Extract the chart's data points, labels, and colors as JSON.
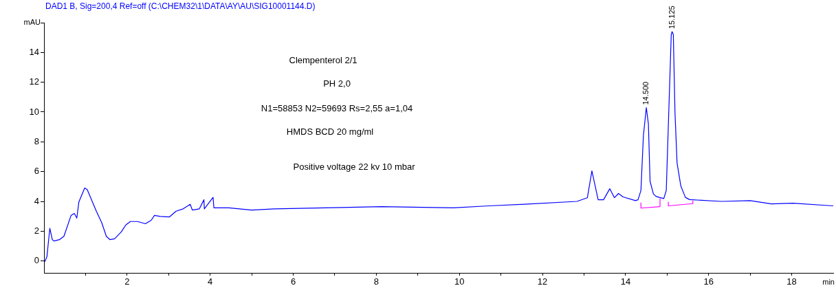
{
  "chart_data": {
    "type": "line",
    "title": "DAD1 B, Sig=200,4 Ref=off (C:\\CHEM32\\1\\DATA\\AY\\AU\\SIG10001144.D)",
    "xlabel": "min",
    "ylabel": "mAU",
    "annotations": [
      "Clempenterol 2/1",
      "PH 2,0",
      "N1=58853 N2=59693 Rs=2,55 a=1,04",
      "HMDS BCD 20 mg/ml",
      "Positive voltage 22 kv 10 mbar",
      {
        "text": "14.500",
        "x": 14.5,
        "y": 10.3
      },
      {
        "text": "15.125",
        "x": 15.12,
        "y": 15.4
      }
    ],
    "series": [
      {
        "color": "#0000ff",
        "x": [
          0.02,
          0.07,
          0.14,
          0.2,
          0.24,
          0.37,
          0.48,
          0.65,
          0.73,
          0.79,
          0.84,
          0.98,
          1.04,
          1.12,
          1.26,
          1.39,
          1.5,
          1.59,
          1.7,
          1.86,
          1.97,
          2.08,
          2.25,
          2.44,
          2.58,
          2.66,
          2.8,
          3.02,
          3.18,
          3.35,
          3.52,
          3.57,
          3.74,
          3.85,
          3.86,
          4.07,
          4.09,
          4.45,
          5.0,
          5.55,
          8.13,
          9.85,
          10.71,
          11.57,
          12.83,
          13.08,
          13.19,
          13.34,
          13.47,
          13.62,
          13.73,
          13.83,
          13.94,
          14.24,
          14.3,
          14.37,
          14.43,
          14.5,
          14.55,
          14.59,
          14.67,
          14.73,
          14.81,
          14.92,
          14.98,
          15.04,
          15.1,
          15.12,
          15.15,
          15.19,
          15.24,
          15.33,
          15.44,
          15.54,
          16.31,
          17.0,
          17.51,
          18.03,
          19.0
        ],
        "values": [
          -0.05,
          0.28,
          2.19,
          1.43,
          1.34,
          1.43,
          1.66,
          3.05,
          3.19,
          2.88,
          3.97,
          4.9,
          4.8,
          4.27,
          3.34,
          2.57,
          1.66,
          1.43,
          1.49,
          1.95,
          2.42,
          2.65,
          2.65,
          2.5,
          2.73,
          3.06,
          2.99,
          2.96,
          3.34,
          3.5,
          3.8,
          3.42,
          3.5,
          4.11,
          3.5,
          4.27,
          3.57,
          3.57,
          3.42,
          3.5,
          3.65,
          3.57,
          3.7,
          3.81,
          4.0,
          4.24,
          6.05,
          4.11,
          4.11,
          4.85,
          4.25,
          4.53,
          4.3,
          4.05,
          4.11,
          4.73,
          8.42,
          10.3,
          9.2,
          5.35,
          4.5,
          4.34,
          4.27,
          4.19,
          4.73,
          9.96,
          15.2,
          15.4,
          15.2,
          9.96,
          6.58,
          5.04,
          4.27,
          4.12,
          4.0,
          4.05,
          3.83,
          3.88,
          3.7
        ]
      },
      {
        "color": "#ff00ff",
        "x": [
          14.37,
          14.37,
          14.83,
          14.83
        ],
        "values": [
          3.9,
          3.55,
          3.65,
          4.2
        ]
      },
      {
        "color": "#ff00ff",
        "x": [
          15.03,
          15.03,
          15.62,
          15.62
        ],
        "values": [
          3.95,
          3.7,
          3.85,
          4.05
        ]
      }
    ],
    "xlim": [
      0,
      19
    ],
    "xticks": [
      {
        "value": 1,
        "label": null
      },
      2,
      {
        "value": 3,
        "label": null
      },
      4,
      {
        "value": 5,
        "label": null
      },
      6,
      {
        "value": 7,
        "label": null
      },
      8,
      {
        "value": 9,
        "label": null
      },
      10,
      {
        "value": 11,
        "label": null
      },
      12,
      {
        "value": 13,
        "label": null
      },
      14,
      {
        "value": 15,
        "label": null
      },
      16,
      {
        "value": 17,
        "label": null
      },
      18
    ],
    "ylim": [
      -0.8,
      16
    ],
    "yticks": [
      0,
      2,
      4,
      6,
      8,
      10,
      12,
      14,
      {
        "value": 16,
        "label": null
      }
    ],
    "grid": false,
    "legend": false,
    "marker": "none",
    "line_style": "solid"
  }
}
